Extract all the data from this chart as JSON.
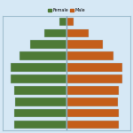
{
  "title": "Female  Male",
  "female_color": "#4E7A36",
  "male_color": "#C45E1A",
  "background_color": "#D6E8F5",
  "bar_border_color": "#B0C8D8",
  "female_values": [
    9.5,
    9.5,
    9.2,
    9.5,
    10,
    10,
    8.5,
    6.5,
    4,
    1.2
  ],
  "male_values": [
    9.5,
    9.5,
    9.2,
    9.5,
    10,
    10,
    8.5,
    6.5,
    4,
    1.2
  ],
  "bar_height": 0.75,
  "xlim": 11.5,
  "gap_color": "#8AAABB"
}
